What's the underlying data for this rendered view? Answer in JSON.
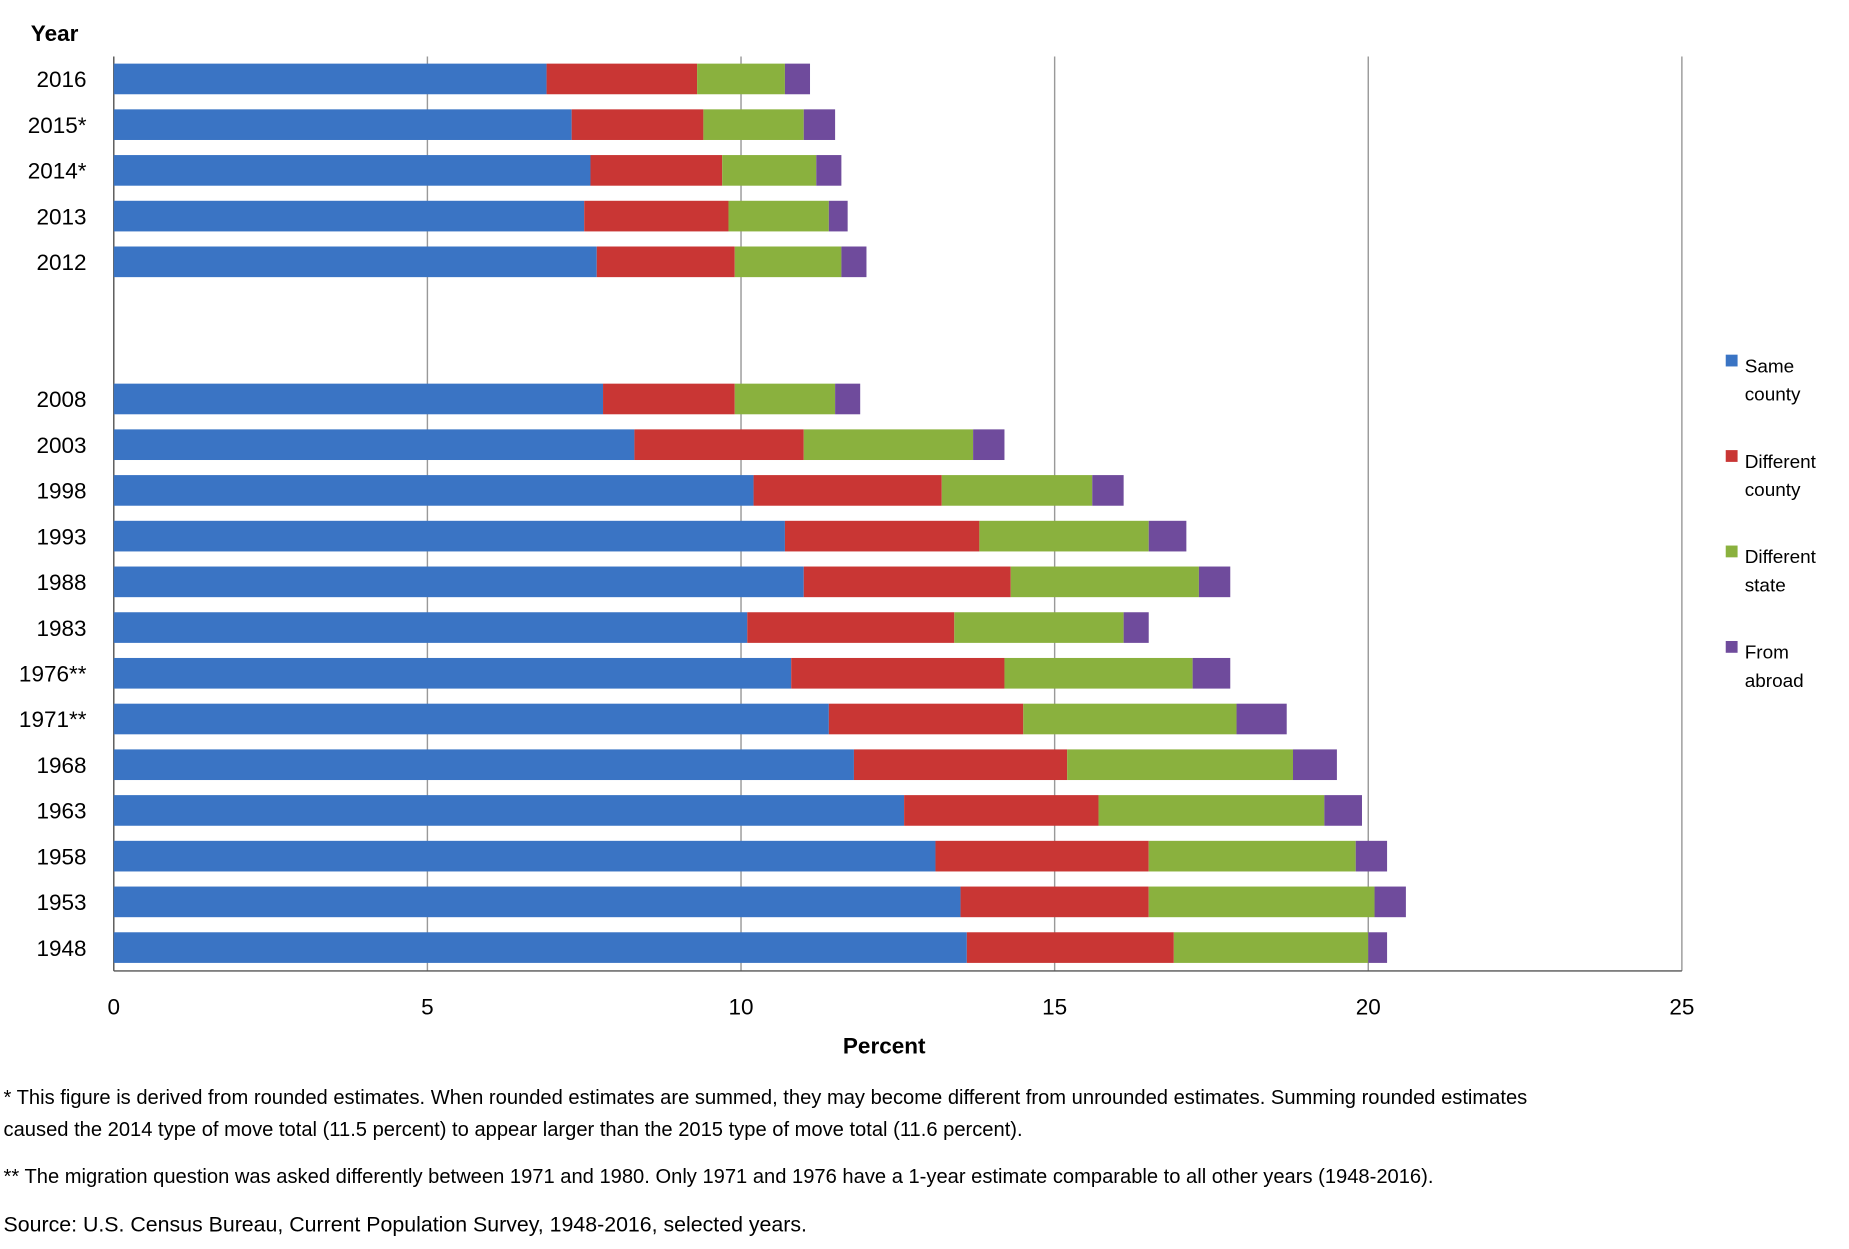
{
  "chart_data": {
    "type": "bar",
    "orientation": "horizontal",
    "stacked": true,
    "xlabel": "Percent",
    "ylabel": "Year",
    "xlim": [
      0,
      25
    ],
    "xticks": [
      "0",
      "5",
      "10",
      "15",
      "20",
      "25"
    ],
    "grid": true,
    "legend_position": "right",
    "categories": [
      "2016",
      "2015*",
      "2014*",
      "2013",
      "2012",
      "2008",
      "2003",
      "1998",
      "1993",
      "1988",
      "1983",
      "1976**",
      "1971**",
      "1968",
      "1963",
      "1958",
      "1953",
      "1948"
    ],
    "series": [
      {
        "name": "Same county",
        "legend_lines": [
          "Same",
          "county"
        ],
        "color": "#3a74c4",
        "values": [
          6.9,
          7.3,
          7.6,
          7.5,
          7.7,
          7.8,
          8.3,
          10.2,
          10.7,
          11.0,
          10.1,
          10.8,
          11.4,
          11.8,
          12.6,
          13.1,
          13.5,
          13.6
        ]
      },
      {
        "name": "Different county",
        "legend_lines": [
          "Different",
          "county"
        ],
        "color": "#c93634",
        "values": [
          2.4,
          2.1,
          2.1,
          2.3,
          2.2,
          2.1,
          2.7,
          3.0,
          3.1,
          3.3,
          3.3,
          3.4,
          3.1,
          3.4,
          3.1,
          3.4,
          3.0,
          3.3
        ]
      },
      {
        "name": "Different state",
        "legend_lines": [
          "Different",
          "state"
        ],
        "color": "#8ab13e",
        "values": [
          1.4,
          1.6,
          1.5,
          1.6,
          1.7,
          1.6,
          2.7,
          2.4,
          2.7,
          3.0,
          2.7,
          3.0,
          3.4,
          3.6,
          3.6,
          3.3,
          3.6,
          3.1
        ]
      },
      {
        "name": "From abroad",
        "legend_lines": [
          "From",
          "abroad"
        ],
        "color": "#6f4b9c",
        "values": [
          0.4,
          0.5,
          0.4,
          0.3,
          0.4,
          0.4,
          0.5,
          0.5,
          0.6,
          0.5,
          0.4,
          0.6,
          0.8,
          0.7,
          0.6,
          0.5,
          0.5,
          0.3
        ]
      }
    ]
  },
  "footnotes": [
    "* This figure is derived from rounded estimates. When rounded estimates are summed, they may become different from unrounded estimates. Summing rounded estimates",
    "caused the 2014 type of move total (11.5 percent)  to appear larger than the 2015 type of move total (11.6 percent).",
    "** The migration question was asked differently between 1971 and 1980. Only 1971 and 1976 have a 1-year estimate comparable to all other years (1948-2016).",
    "Source: U.S. Census Bureau, Current Population Survey, 1948-2016, selected years."
  ]
}
